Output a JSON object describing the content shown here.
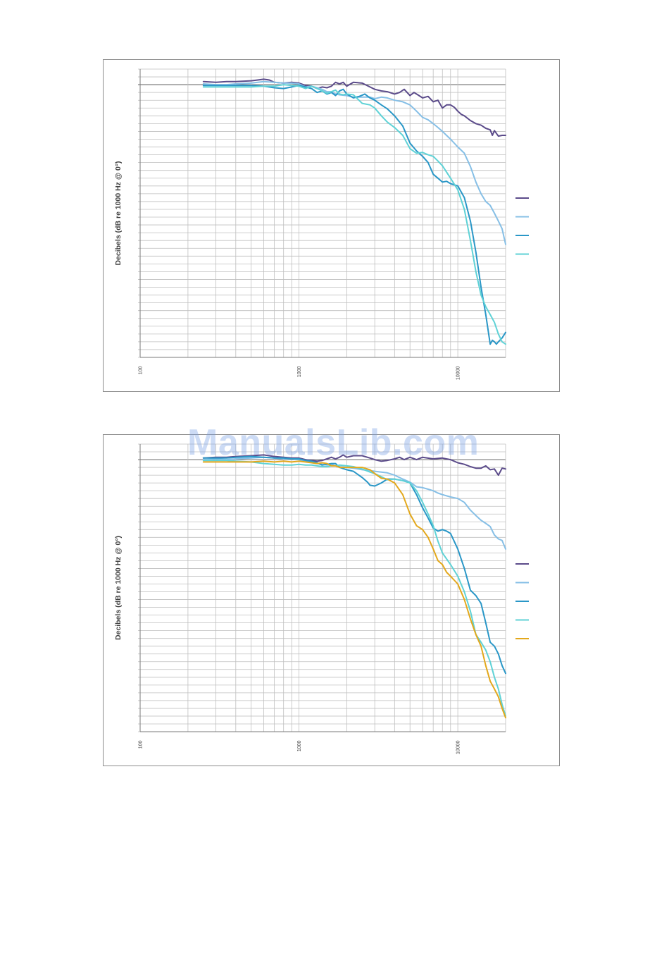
{
  "watermark": "ManualsLib.com",
  "chart_data": [
    {
      "type": "line",
      "xscale": "log",
      "xlabel": "",
      "ylabel": "Decibels (dB re 1000 Hz @ 0°)",
      "xlim": [
        100,
        20000
      ],
      "ylim": [
        -35,
        2
      ],
      "ytick_step": 1,
      "xtick_labels": [
        "100",
        "1000",
        "10000"
      ],
      "grid": true,
      "legend_position": "right",
      "series": [
        {
          "color": "#5b4b8a",
          "x": [
            250,
            300,
            350,
            400,
            500,
            550,
            600,
            650,
            700,
            800,
            900,
            1000,
            1100,
            1200,
            1300,
            1400,
            1500,
            1600,
            1700,
            1800,
            1900,
            2000,
            2200,
            2500,
            2800,
            3000,
            3300,
            3600,
            4000,
            4300,
            4600,
            5000,
            5300,
            5600,
            6000,
            6500,
            7000,
            7500,
            8000,
            8500,
            9000,
            9500,
            10000,
            10500,
            11000,
            12000,
            13000,
            14000,
            15000,
            16000,
            16500,
            17000,
            18000,
            19000,
            20000
          ],
          "y": [
            0.4,
            0.3,
            0.4,
            0.4,
            0.5,
            0.6,
            0.7,
            0.6,
            0.3,
            0.2,
            0.3,
            0.2,
            -0.1,
            -0.2,
            -0.5,
            -0.3,
            -0.4,
            -0.2,
            0.3,
            0.1,
            0.3,
            -0.2,
            0.3,
            0.2,
            -0.3,
            -0.6,
            -0.8,
            -0.9,
            -1.2,
            -1.0,
            -0.6,
            -1.4,
            -1.0,
            -1.3,
            -1.7,
            -1.5,
            -2.2,
            -2.0,
            -3.0,
            -2.6,
            -2.6,
            -2.9,
            -3.4,
            -3.8,
            -4.0,
            -4.6,
            -5.0,
            -5.2,
            -5.6,
            -5.8,
            -6.5,
            -5.9,
            -6.6,
            -6.5,
            -6.5
          ]
        },
        {
          "color": "#86bfe6",
          "x": [
            250,
            300,
            350,
            400,
            500,
            600,
            700,
            800,
            900,
            1000,
            1100,
            1200,
            1300,
            1400,
            1500,
            1600,
            1700,
            1800,
            2000,
            2200,
            2500,
            2800,
            3000,
            3300,
            3600,
            4000,
            4500,
            5000,
            5500,
            6000,
            6500,
            7000,
            7500,
            8000,
            9000,
            10000,
            11000,
            12000,
            13000,
            14000,
            15000,
            16000,
            17000,
            18000,
            19000,
            20000
          ],
          "y": [
            0.1,
            0.0,
            0.0,
            0.1,
            0.2,
            0.4,
            0.3,
            0.2,
            0.2,
            0.1,
            -0.3,
            -0.2,
            -0.4,
            -0.6,
            -0.9,
            -0.9,
            -1.2,
            -1.3,
            -1.4,
            -1.6,
            -1.6,
            -1.6,
            -1.8,
            -1.6,
            -1.7,
            -2.0,
            -2.2,
            -2.6,
            -3.4,
            -4.2,
            -4.5,
            -5.0,
            -5.5,
            -6.0,
            -7.0,
            -8.0,
            -8.8,
            -10.5,
            -12.5,
            -14.0,
            -15.0,
            -15.5,
            -16.5,
            -17.5,
            -18.5,
            -20.5
          ]
        },
        {
          "color": "#2a97c7",
          "x": [
            250,
            300,
            350,
            400,
            500,
            600,
            700,
            800,
            900,
            1000,
            1100,
            1200,
            1300,
            1400,
            1500,
            1600,
            1700,
            1800,
            1900,
            2000,
            2200,
            2400,
            2600,
            2800,
            3000,
            3300,
            3600,
            4000,
            4500,
            5000,
            5500,
            6000,
            6500,
            7000,
            7500,
            8000,
            8500,
            9000,
            10000,
            11000,
            12000,
            13000,
            14000,
            15000,
            16000,
            16500,
            17000,
            17500,
            18000,
            19000,
            20000
          ],
          "y": [
            -0.1,
            -0.1,
            -0.1,
            -0.1,
            -0.1,
            -0.2,
            -0.4,
            -0.5,
            -0.3,
            -0.1,
            -0.3,
            -0.5,
            -1.0,
            -0.8,
            -1.2,
            -1.0,
            -1.4,
            -0.8,
            -0.6,
            -1.2,
            -1.7,
            -1.5,
            -1.2,
            -1.7,
            -2.0,
            -2.6,
            -3.1,
            -4.0,
            -5.3,
            -7.5,
            -8.5,
            -9.2,
            -10.0,
            -11.5,
            -12.0,
            -12.5,
            -12.4,
            -12.7,
            -13.0,
            -14.5,
            -17.5,
            -21.5,
            -26.0,
            -29.5,
            -33.3,
            -32.8,
            -33.0,
            -33.3,
            -33.0,
            -32.5,
            -31.8
          ]
        },
        {
          "color": "#5fd2d6",
          "x": [
            250,
            300,
            350,
            400,
            500,
            600,
            700,
            800,
            900,
            1000,
            1100,
            1200,
            1300,
            1400,
            1500,
            1600,
            1700,
            1800,
            1900,
            2000,
            2200,
            2500,
            2800,
            3000,
            3300,
            3600,
            4000,
            4500,
            5000,
            5500,
            6000,
            6500,
            7000,
            7500,
            8000,
            9000,
            10000,
            11000,
            12000,
            13000,
            14000,
            15000,
            16000,
            17000,
            18000,
            19000,
            20000
          ],
          "y": [
            -0.3,
            -0.3,
            -0.3,
            -0.3,
            -0.3,
            -0.2,
            -0.2,
            0.0,
            -0.1,
            -0.2,
            -0.5,
            -0.2,
            -0.5,
            -0.8,
            -1.1,
            -0.9,
            -0.7,
            -1.2,
            -1.3,
            -1.2,
            -1.3,
            -2.4,
            -2.6,
            -3.0,
            -4.0,
            -4.8,
            -5.5,
            -6.5,
            -8.2,
            -8.8,
            -8.7,
            -9.0,
            -9.2,
            -9.8,
            -10.4,
            -12.0,
            -13.5,
            -16.0,
            -20.0,
            -24.0,
            -27.0,
            -28.5,
            -29.5,
            -30.5,
            -32.0,
            -33.0,
            -33.3
          ]
        }
      ]
    },
    {
      "type": "line",
      "xscale": "log",
      "xlabel": "",
      "ylabel": "Decibels (dB re 1000 Hz @ 0°)",
      "xlim": [
        100,
        20000
      ],
      "ylim": [
        -35,
        2
      ],
      "ytick_step": 1,
      "xtick_labels": [
        "100",
        "1000",
        "10000"
      ],
      "grid": true,
      "legend_position": "right",
      "series": [
        {
          "color": "#5b4b8a",
          "x": [
            250,
            300,
            350,
            400,
            500,
            600,
            700,
            800,
            900,
            1000,
            1100,
            1200,
            1300,
            1400,
            1500,
            1600,
            1700,
            1800,
            1900,
            2000,
            2200,
            2500,
            2800,
            3000,
            3300,
            3600,
            4000,
            4300,
            4600,
            5000,
            5500,
            6000,
            7000,
            8000,
            9000,
            10000,
            11000,
            12000,
            13000,
            14000,
            15000,
            16000,
            17000,
            18000,
            19000,
            20000
          ],
          "y": [
            0.2,
            0.3,
            0.3,
            0.4,
            0.5,
            0.6,
            0.4,
            0.3,
            0.2,
            0.2,
            0.0,
            -0.1,
            -0.2,
            -0.1,
            0.1,
            0.3,
            0.1,
            0.3,
            0.6,
            0.3,
            0.5,
            0.5,
            0.2,
            0.0,
            -0.2,
            -0.1,
            0.1,
            0.3,
            0.0,
            0.3,
            0.0,
            0.3,
            0.1,
            0.2,
            0.0,
            -0.4,
            -0.6,
            -0.9,
            -1.1,
            -1.1,
            -0.8,
            -1.3,
            -1.2,
            -2.0,
            -1.1,
            -1.2
          ]
        },
        {
          "color": "#86bfe6",
          "x": [
            250,
            300,
            350,
            400,
            500,
            600,
            700,
            800,
            900,
            1000,
            1100,
            1200,
            1300,
            1400,
            1500,
            1600,
            1700,
            1800,
            2000,
            2200,
            2500,
            2800,
            3000,
            3300,
            3600,
            4000,
            4500,
            5000,
            5500,
            6000,
            6500,
            7000,
            7500,
            8000,
            9000,
            10000,
            11000,
            12000,
            13000,
            14000,
            15000,
            16000,
            17000,
            18000,
            19000,
            20000
          ],
          "y": [
            0.0,
            0.1,
            0.0,
            0.1,
            0.2,
            0.3,
            0.2,
            0.1,
            0.1,
            0.0,
            -0.2,
            -0.3,
            -0.5,
            -0.6,
            -0.7,
            -0.6,
            -0.8,
            -0.9,
            -1.0,
            -1.1,
            -1.3,
            -1.4,
            -1.5,
            -1.6,
            -1.7,
            -2.0,
            -2.5,
            -2.9,
            -3.5,
            -3.6,
            -3.8,
            -4.0,
            -4.3,
            -4.5,
            -4.8,
            -5.0,
            -5.5,
            -6.5,
            -7.2,
            -7.8,
            -8.2,
            -8.6,
            -9.7,
            -10.2,
            -10.4,
            -11.5
          ]
        },
        {
          "color": "#2a97c7",
          "x": [
            250,
            300,
            350,
            400,
            500,
            600,
            700,
            800,
            900,
            1000,
            1100,
            1200,
            1300,
            1400,
            1500,
            1600,
            1700,
            1800,
            2000,
            2200,
            2500,
            2700,
            2800,
            3000,
            3300,
            3600,
            4000,
            4500,
            5000,
            5500,
            6000,
            6500,
            7000,
            7500,
            8000,
            8500,
            9000,
            10000,
            11000,
            12000,
            13000,
            14000,
            15000,
            16000,
            17000,
            18000,
            19000,
            20000
          ],
          "y": [
            0.2,
            0.2,
            0.2,
            0.3,
            0.4,
            0.3,
            0.2,
            0.2,
            0.1,
            0.1,
            -0.1,
            -0.2,
            -0.4,
            -0.7,
            -0.6,
            -0.5,
            -0.5,
            -1.0,
            -1.3,
            -1.5,
            -2.3,
            -2.9,
            -3.3,
            -3.4,
            -3.0,
            -2.5,
            -2.5,
            -2.7,
            -3.0,
            -4.5,
            -6.2,
            -7.5,
            -8.8,
            -9.2,
            -9.0,
            -9.2,
            -9.5,
            -11.5,
            -14.0,
            -16.8,
            -17.5,
            -18.5,
            -21.0,
            -23.5,
            -24.0,
            -25.0,
            -26.5,
            -27.5
          ]
        },
        {
          "color": "#5fd2d6",
          "x": [
            250,
            300,
            350,
            400,
            500,
            600,
            700,
            800,
            900,
            1000,
            1100,
            1200,
            1300,
            1400,
            1500,
            1600,
            1700,
            1800,
            2000,
            2200,
            2500,
            2800,
            3000,
            3300,
            3600,
            4000,
            4500,
            5000,
            5500,
            6000,
            6500,
            7000,
            7500,
            8000,
            9000,
            10000,
            11000,
            12000,
            13000,
            14000,
            15000,
            16000,
            17000,
            18000,
            19000,
            20000
          ],
          "y": [
            -0.1,
            -0.1,
            -0.1,
            -0.2,
            -0.3,
            -0.5,
            -0.6,
            -0.7,
            -0.7,
            -0.6,
            -0.7,
            -0.7,
            -0.8,
            -0.9,
            -0.9,
            -0.8,
            -0.8,
            -0.7,
            -0.8,
            -0.9,
            -1.2,
            -1.6,
            -1.8,
            -2.2,
            -2.6,
            -2.5,
            -2.7,
            -3.0,
            -4.0,
            -5.5,
            -7.0,
            -8.5,
            -10.5,
            -12.0,
            -13.5,
            -15.0,
            -17.0,
            -19.5,
            -22.5,
            -23.5,
            -24.5,
            -26.0,
            -28.0,
            -29.5,
            -31.5,
            -33.0
          ]
        },
        {
          "color": "#e3a81c",
          "x": [
            250,
            300,
            350,
            400,
            500,
            600,
            700,
            800,
            900,
            1000,
            1100,
            1200,
            1300,
            1400,
            1500,
            1600,
            1700,
            1800,
            2000,
            2200,
            2500,
            2800,
            3000,
            3300,
            3600,
            4000,
            4500,
            5000,
            5500,
            6000,
            6500,
            7000,
            7500,
            8000,
            8500,
            9000,
            10000,
            11000,
            12000,
            13000,
            14000,
            15000,
            16000,
            17000,
            18000,
            19000,
            20000
          ],
          "y": [
            -0.3,
            -0.3,
            -0.3,
            -0.3,
            -0.3,
            -0.2,
            -0.3,
            -0.2,
            -0.3,
            -0.2,
            -0.3,
            -0.4,
            -0.5,
            -0.4,
            -0.5,
            -0.8,
            -0.8,
            -1.0,
            -1.0,
            -1.0,
            -1.0,
            -1.3,
            -1.8,
            -2.4,
            -2.5,
            -3.0,
            -4.5,
            -7.0,
            -8.5,
            -9.0,
            -10.0,
            -11.5,
            -13.0,
            -13.5,
            -14.5,
            -15.0,
            -16.0,
            -18.0,
            -20.5,
            -22.5,
            -24.0,
            -26.5,
            -28.5,
            -29.5,
            -30.5,
            -32.0,
            -33.2
          ]
        }
      ]
    }
  ]
}
